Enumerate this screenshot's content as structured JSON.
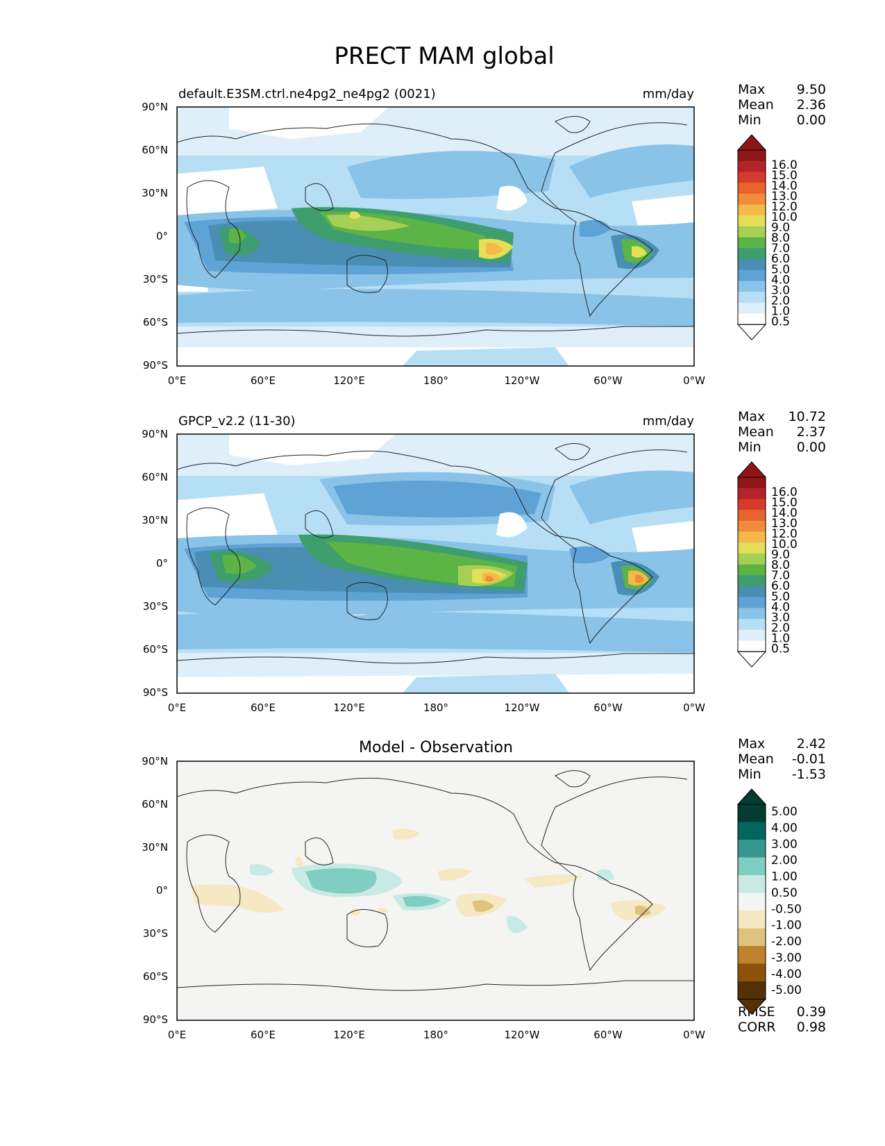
{
  "title": "PRECT MAM global",
  "axes": {
    "lat_ticks": [
      "90°N",
      "60°N",
      "30°N",
      "0°",
      "30°S",
      "60°S",
      "90°S"
    ],
    "lon_ticks": [
      "0°E",
      "60°E",
      "120°E",
      "180°",
      "120°W",
      "60°W",
      "0°W"
    ]
  },
  "panels": [
    {
      "title_left": "default.E3SM.ctrl.ne4pg2_ne4pg2 (0021)",
      "title_center": "",
      "units": "mm/day",
      "stats": [
        {
          "label": "Max",
          "value": "9.50"
        },
        {
          "label": "Mean",
          "value": "2.36"
        },
        {
          "label": "Min",
          "value": "0.00"
        }
      ],
      "colorbar_labels": [
        "16.0",
        "15.0",
        "14.0",
        "13.0",
        "12.0",
        "10.0",
        "9.0",
        "8.0",
        "7.0",
        "6.0",
        "5.0",
        "4.0",
        "3.0",
        "2.0",
        "1.0",
        "0.5"
      ]
    },
    {
      "title_left": "GPCP_v2.2 (11-30)",
      "title_center": "",
      "units": "mm/day",
      "stats": [
        {
          "label": "Max",
          "value": "10.72"
        },
        {
          "label": "Mean",
          "value": "2.37"
        },
        {
          "label": "Min",
          "value": "0.00"
        }
      ],
      "colorbar_labels": [
        "16.0",
        "15.0",
        "14.0",
        "13.0",
        "12.0",
        "10.0",
        "9.0",
        "8.0",
        "7.0",
        "6.0",
        "5.0",
        "4.0",
        "3.0",
        "2.0",
        "1.0",
        "0.5"
      ]
    },
    {
      "title_left": "",
      "title_center": "Model - Observation",
      "units": "",
      "stats": [
        {
          "label": "Max",
          "value": "2.42"
        },
        {
          "label": "Mean",
          "value": "-0.01"
        },
        {
          "label": "Min",
          "value": "-1.53"
        }
      ],
      "colorbar_labels": [
        "5.00",
        "4.00",
        "3.00",
        "2.00",
        "1.00",
        "0.50",
        "-0.50",
        "-1.00",
        "-2.00",
        "-3.00",
        "-4.00",
        "-5.00"
      ],
      "footer_stats": [
        {
          "label": "RMSE",
          "value": "0.39"
        },
        {
          "label": "CORR",
          "value": "0.98"
        }
      ]
    }
  ],
  "colors": {
    "precip_scale": [
      "#ffffff",
      "#deeffa",
      "#b6def4",
      "#89c3e8",
      "#5fa2d6",
      "#4a8fb3",
      "#3f9e6e",
      "#5cb446",
      "#a6cf56",
      "#e6dd58",
      "#f5b94a",
      "#f18c3a",
      "#e8622e",
      "#d63a2c",
      "#b5232a",
      "#8e1619"
    ],
    "diff_scale": [
      "#003c30",
      "#01665e",
      "#35978f",
      "#80cdc1",
      "#c7eae5",
      "#f5f5f5",
      "#f6e8c3",
      "#dfc27d",
      "#bf812d",
      "#8c510a",
      "#543005"
    ],
    "diff_background": "#f4f4f2",
    "coastline": "#222222"
  }
}
